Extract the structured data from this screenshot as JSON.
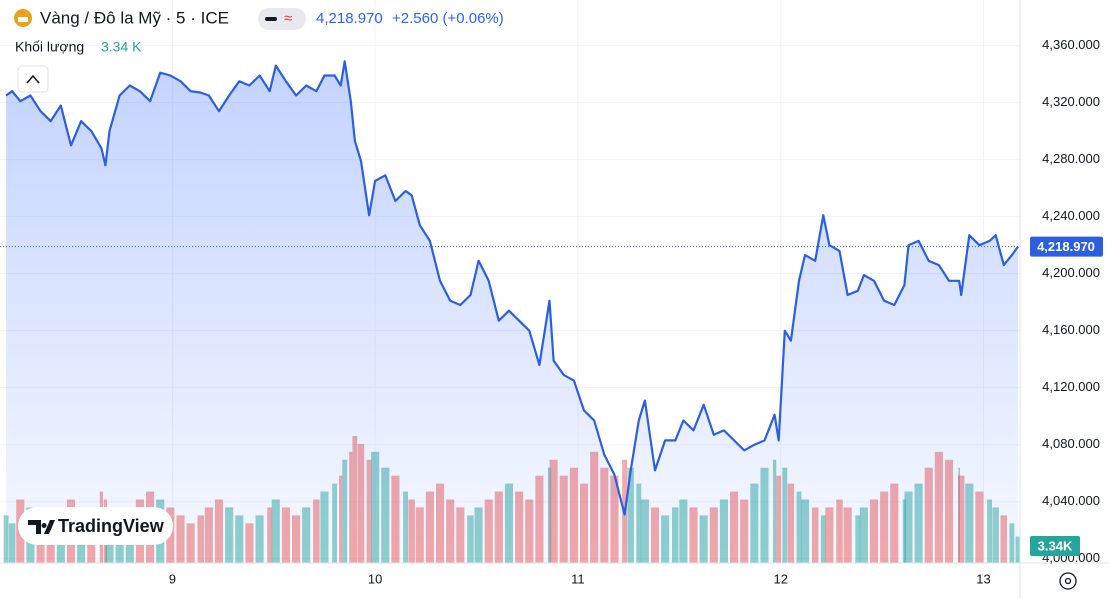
{
  "header": {
    "symbol": "Vàng / Đô la Mỹ · 5 · ICE",
    "change": "+2.560 (+0.06%)",
    "volume_title": "Khối lượng",
    "volume_value": "3.34 K"
  },
  "logo": "TradingView",
  "chart_data": {
    "type": "line",
    "color": "#2c5fe0",
    "last_label": "4,218.970",
    "x": [
      8.18,
      8.21,
      8.25,
      8.3,
      8.35,
      8.4,
      8.45,
      8.5,
      8.55,
      8.6,
      8.65,
      8.67,
      8.69,
      8.74,
      8.79,
      8.84,
      8.89,
      8.94,
      8.99,
      9.04,
      9.09,
      9.14,
      9.18,
      9.23,
      9.28,
      9.33,
      9.38,
      9.43,
      9.48,
      9.51,
      9.56,
      9.61,
      9.66,
      9.71,
      9.75,
      9.8,
      9.83,
      9.85,
      9.88,
      9.9,
      9.93,
      9.97,
      10.0,
      10.05,
      10.1,
      10.15,
      10.18,
      10.22,
      10.27,
      10.32,
      10.37,
      10.42,
      10.47,
      10.51,
      10.56,
      10.61,
      10.66,
      10.71,
      10.76,
      10.81,
      10.86,
      10.88,
      10.93,
      10.98,
      11.03,
      11.08,
      11.13,
      11.18,
      11.23,
      11.26,
      11.3,
      11.33,
      11.38,
      11.43,
      11.48,
      11.52,
      11.57,
      11.62,
      11.67,
      11.72,
      11.77,
      11.82,
      11.87,
      11.92,
      11.97,
      11.99,
      12.02,
      12.05,
      12.09,
      12.12,
      12.17,
      12.21,
      12.24,
      12.29,
      12.33,
      12.38,
      12.41,
      12.46,
      12.51,
      12.56,
      12.61,
      12.63,
      12.68,
      12.73,
      12.78,
      12.83,
      12.88,
      12.89,
      12.93,
      12.98,
      13.03,
      13.06,
      13.1,
      13.14,
      13.17
    ],
    "values": [
      4325,
      4328,
      4321,
      4325,
      4314,
      4307,
      4318,
      4290,
      4307,
      4300,
      4288,
      4276,
      4300,
      4325,
      4332,
      4328,
      4321,
      4341,
      4339,
      4335,
      4328,
      4327,
      4325,
      4314,
      4325,
      4335,
      4332,
      4339,
      4328,
      4346,
      4335,
      4325,
      4332,
      4328,
      4339,
      4339,
      4332,
      4349,
      4321,
      4293,
      4279,
      4241,
      4265,
      4269,
      4251,
      4258,
      4255,
      4234,
      4223,
      4195,
      4181,
      4178,
      4185,
      4209,
      4195,
      4167,
      4174,
      4167,
      4160,
      4136,
      4181,
      4139,
      4129,
      4125,
      4104,
      4097,
      4073,
      4059,
      4031,
      4062,
      4097,
      4111,
      4062,
      4083,
      4083,
      4097,
      4090,
      4108,
      4087,
      4090,
      4083,
      4076,
      4080,
      4083,
      4101,
      4083,
      4160,
      4153,
      4195,
      4213,
      4209,
      4241,
      4220,
      4216,
      4185,
      4188,
      4199,
      4195,
      4181,
      4178,
      4192,
      4220,
      4223,
      4209,
      4206,
      4195,
      4195,
      4185,
      4227,
      4220,
      4223,
      4227,
      4206,
      4213,
      4218.97
    ],
    "volume": {
      "up_color": "rgba(38,166,154,0.5)",
      "down_color": "rgba(239,83,80,0.5)",
      "tag_color": "#26a69a",
      "last_label": "3.34K",
      "values": [
        6,
        5,
        8,
        7,
        6,
        5,
        7,
        8,
        6,
        7,
        9,
        8,
        6,
        5,
        7,
        8,
        9,
        8,
        7,
        6,
        5,
        6,
        7,
        8,
        7,
        6,
        5,
        6,
        7,
        8,
        7,
        6,
        7,
        8,
        9,
        10,
        11,
        13,
        14,
        16,
        15,
        13,
        14,
        12,
        11,
        9,
        8,
        7,
        9,
        10,
        8,
        7,
        6,
        7,
        8,
        9,
        10,
        9,
        8,
        11,
        12,
        13,
        11,
        12,
        10,
        14,
        12,
        11,
        13,
        12,
        10,
        8,
        7,
        6,
        7,
        8,
        7,
        6,
        7,
        8,
        9,
        8,
        10,
        12,
        13,
        11,
        12,
        10,
        9,
        8,
        7,
        6,
        7,
        8,
        7,
        6,
        7,
        8,
        9,
        10,
        8,
        9,
        10,
        12,
        14,
        13,
        12,
        11,
        10,
        9,
        8,
        7,
        6,
        5,
        3.34
      ]
    },
    "xlim": [
      8.15,
      13.18
    ],
    "xticks": [
      9,
      10,
      11,
      12,
      13
    ],
    "ylim": [
      3997,
      4392
    ],
    "yticks": [
      {
        "value": 4000,
        "label": "4,000.000"
      },
      {
        "value": 4040,
        "label": "4,040.000"
      },
      {
        "value": 4080,
        "label": "4,080.000"
      },
      {
        "value": 4120,
        "label": "4,120.000"
      },
      {
        "value": 4160,
        "label": "4,160.000"
      },
      {
        "value": 4200,
        "label": "4,200.000"
      },
      {
        "value": 4240,
        "label": "4,240.000"
      },
      {
        "value": 4280,
        "label": "4,280.000"
      },
      {
        "value": 4320,
        "label": "4,320.000"
      },
      {
        "value": 4360,
        "label": "4,360.000"
      }
    ],
    "grid": true
  }
}
